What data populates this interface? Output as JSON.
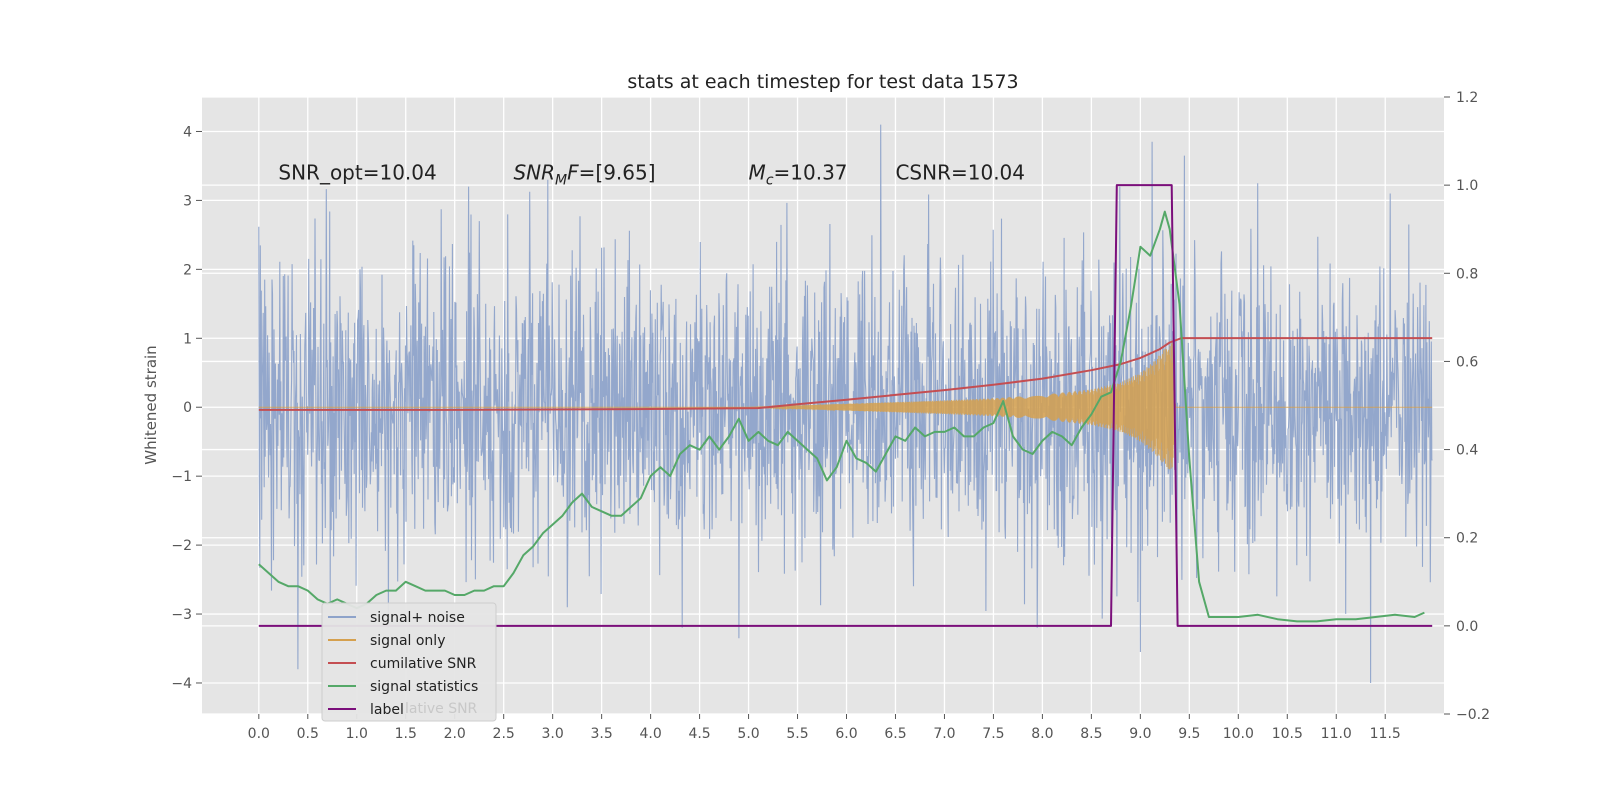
{
  "chart_data": {
    "type": "line",
    "title": "stats at each timestep for test data 1573",
    "ylabel": "Whitened strain",
    "xlabel": "",
    "xlim": [
      -0.58,
      12.1
    ],
    "ylim": [
      -4.45,
      4.5
    ],
    "y2lim": [
      -0.2,
      1.2
    ],
    "grid": true,
    "legend_placement": "lower-left",
    "x_ticks": [
      0.0,
      0.5,
      1.0,
      1.5,
      2.0,
      2.5,
      3.0,
      3.5,
      4.0,
      4.5,
      5.0,
      5.5,
      6.0,
      6.5,
      7.0,
      7.5,
      8.0,
      8.5,
      9.0,
      9.5,
      10.0,
      10.5,
      11.0,
      11.5
    ],
    "x_tick_labels": [
      "0.0",
      "0.5",
      "1.0",
      "1.5",
      "2.0",
      "2.5",
      "3.0",
      "3.5",
      "4.0",
      "4.5",
      "5.0",
      "5.5",
      "6.0",
      "6.5",
      "7.0",
      "7.5",
      "8.0",
      "8.5",
      "9.0",
      "9.5",
      "10.0",
      "10.5",
      "11.0",
      "11.5"
    ],
    "y_ticks": [
      -4,
      -3,
      -2,
      -1,
      0,
      1,
      2,
      3,
      4
    ],
    "y_tick_labels": [
      "−4",
      "−3",
      "−2",
      "−1",
      "0",
      "1",
      "2",
      "3",
      "4"
    ],
    "y2_ticks": [
      -0.2,
      0.0,
      0.2,
      0.4,
      0.6,
      0.8,
      1.0,
      1.2
    ],
    "y2_tick_labels": [
      "−0.2",
      "0.0",
      "0.2",
      "0.4",
      "0.6",
      "0.8",
      "1.0",
      "1.2"
    ],
    "annotations": [
      {
        "text": "SNR_opt=10.04",
        "x": 0.2,
        "y": 3.3
      },
      {
        "text": "SNR",
        "sub": "M",
        "tail": "F=[9.65]",
        "italic": true,
        "x": 2.6,
        "y": 3.3
      },
      {
        "text": "M",
        "sub": "c",
        "tail": "=10.37",
        "italic": true,
        "x": 5.0,
        "y": 3.3
      },
      {
        "text": "CSNR=10.04",
        "x": 6.5,
        "y": 3.3
      }
    ],
    "series": [
      {
        "name": "signal+ noise",
        "color": "#8ea3ca",
        "axis": "left",
        "kind": "noise",
        "x_range": [
          0.0,
          11.98
        ],
        "amplitude_std": 1.05,
        "peaks": [
          [
            0.4,
            -3.8
          ],
          [
            2.95,
            3.3
          ],
          [
            4.9,
            -3.35
          ],
          [
            6.35,
            4.1
          ],
          [
            9.0,
            -3.55
          ],
          [
            9.12,
            3.85
          ],
          [
            9.45,
            3.65
          ],
          [
            11.35,
            -4.0
          ],
          [
            10.2,
            3.25
          ],
          [
            11.55,
            3.1
          ]
        ]
      },
      {
        "name": "signal only",
        "color": "#d5a04e",
        "axis": "left",
        "kind": "chirp",
        "envelope": {
          "x": [
            5.0,
            6.0,
            7.0,
            7.5,
            8.0,
            8.5,
            8.8,
            9.0,
            9.15,
            9.25,
            9.33,
            9.36,
            11.98
          ],
          "y": [
            0.0,
            0.05,
            0.1,
            0.13,
            0.18,
            0.26,
            0.36,
            0.5,
            0.68,
            0.85,
            0.95,
            0.0,
            0.0
          ]
        }
      },
      {
        "name": "cumilative SNR",
        "color": "#c44e52",
        "axis": "right",
        "x": [
          0.0,
          2.0,
          4.0,
          5.1,
          5.5,
          6.0,
          6.5,
          7.0,
          7.5,
          8.0,
          8.5,
          8.8,
          9.0,
          9.2,
          9.3,
          9.42,
          10.0,
          11.0,
          11.98
        ],
        "y": [
          0.49,
          0.49,
          0.492,
          0.494,
          0.503,
          0.513,
          0.524,
          0.535,
          0.547,
          0.561,
          0.58,
          0.594,
          0.608,
          0.628,
          0.643,
          0.653,
          0.653,
          0.653,
          0.653
        ]
      },
      {
        "name": "signal statistics",
        "color": "#55a868",
        "axis": "right",
        "x": [
          0.0,
          0.1,
          0.2,
          0.3,
          0.4,
          0.5,
          0.6,
          0.7,
          0.8,
          0.9,
          1.0,
          1.1,
          1.2,
          1.3,
          1.4,
          1.5,
          1.6,
          1.7,
          1.8,
          1.9,
          2.0,
          2.1,
          2.2,
          2.3,
          2.4,
          2.5,
          2.6,
          2.7,
          2.8,
          2.9,
          3.0,
          3.1,
          3.2,
          3.3,
          3.4,
          3.5,
          3.6,
          3.7,
          3.8,
          3.9,
          4.0,
          4.1,
          4.2,
          4.3,
          4.4,
          4.5,
          4.6,
          4.7,
          4.8,
          4.9,
          5.0,
          5.1,
          5.2,
          5.3,
          5.4,
          5.5,
          5.6,
          5.7,
          5.8,
          5.9,
          6.0,
          6.1,
          6.2,
          6.3,
          6.4,
          6.5,
          6.6,
          6.7,
          6.8,
          6.9,
          7.0,
          7.1,
          7.2,
          7.3,
          7.4,
          7.5,
          7.6,
          7.7,
          7.8,
          7.9,
          8.0,
          8.1,
          8.2,
          8.3,
          8.4,
          8.5,
          8.6,
          8.7,
          8.8,
          8.9,
          9.0,
          9.1,
          9.2,
          9.25,
          9.3,
          9.4,
          9.5,
          9.6,
          9.7,
          9.8,
          9.9,
          10.0,
          10.2,
          10.4,
          10.6,
          10.8,
          11.0,
          11.2,
          11.4,
          11.6,
          11.8,
          11.9
        ],
        "y": [
          0.14,
          0.12,
          0.1,
          0.09,
          0.09,
          0.08,
          0.06,
          0.05,
          0.06,
          0.05,
          0.04,
          0.05,
          0.07,
          0.08,
          0.08,
          0.1,
          0.09,
          0.08,
          0.08,
          0.08,
          0.07,
          0.07,
          0.08,
          0.08,
          0.09,
          0.09,
          0.12,
          0.16,
          0.18,
          0.21,
          0.23,
          0.25,
          0.28,
          0.3,
          0.27,
          0.26,
          0.25,
          0.25,
          0.27,
          0.29,
          0.34,
          0.36,
          0.34,
          0.39,
          0.41,
          0.4,
          0.43,
          0.4,
          0.43,
          0.47,
          0.42,
          0.44,
          0.42,
          0.41,
          0.44,
          0.42,
          0.4,
          0.38,
          0.33,
          0.36,
          0.42,
          0.38,
          0.37,
          0.35,
          0.39,
          0.43,
          0.42,
          0.45,
          0.43,
          0.44,
          0.44,
          0.45,
          0.43,
          0.43,
          0.45,
          0.46,
          0.51,
          0.43,
          0.4,
          0.39,
          0.42,
          0.44,
          0.43,
          0.41,
          0.45,
          0.48,
          0.52,
          0.53,
          0.6,
          0.72,
          0.86,
          0.84,
          0.9,
          0.94,
          0.9,
          0.73,
          0.38,
          0.1,
          0.02,
          0.02,
          0.02,
          0.02,
          0.025,
          0.015,
          0.01,
          0.01,
          0.015,
          0.015,
          0.02,
          0.025,
          0.02,
          0.03
        ]
      },
      {
        "name": "label",
        "color": "#7b0f7b",
        "axis": "right",
        "x": [
          0.0,
          8.7,
          8.76,
          9.32,
          9.38,
          11.98
        ],
        "y": [
          0.0,
          0.0,
          1.0,
          1.0,
          0.0,
          0.0
        ]
      }
    ],
    "legend_overlay_text": "lative SNR"
  }
}
